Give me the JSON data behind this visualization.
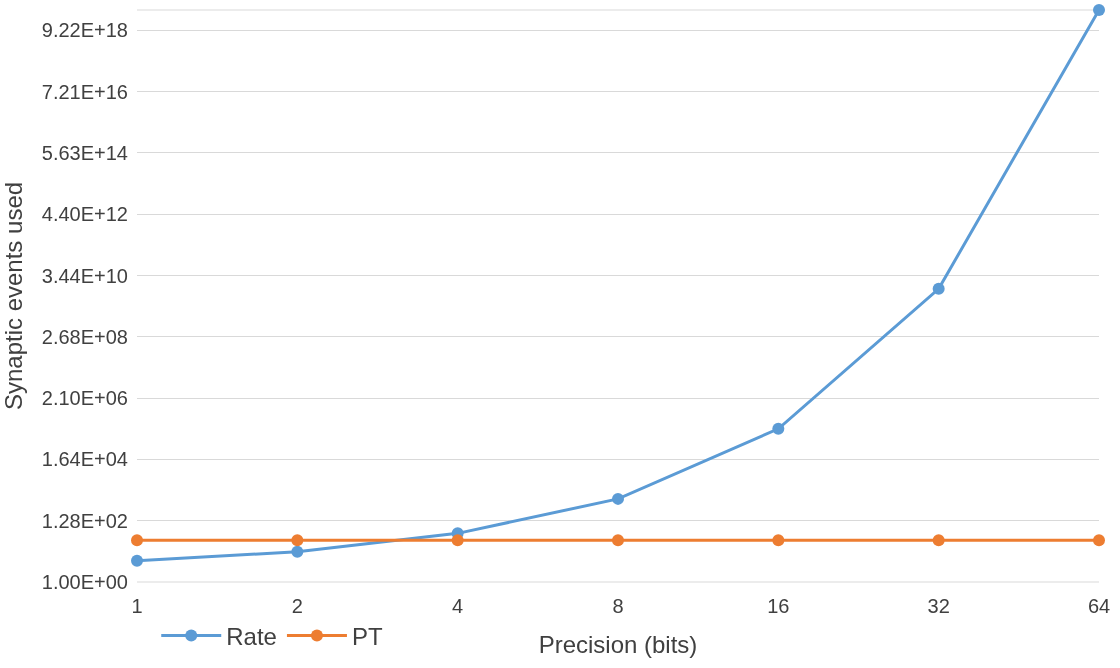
{
  "chart_data": {
    "type": "line",
    "xlabel": "Precision (bits)",
    "ylabel": "Synaptic events used",
    "categories": [
      "1",
      "2",
      "4",
      "8",
      "16",
      "32",
      "64"
    ],
    "series": [
      {
        "name": "Rate",
        "color": "#5b9bd5",
        "values": [
          5.4,
          11,
          47,
          720,
          185000,
          12000000000.0,
          4.6e+19
        ]
      },
      {
        "name": "PT",
        "color": "#ed7d31",
        "values": [
          27,
          27,
          27,
          27,
          27,
          27,
          27
        ]
      }
    ],
    "log": "y",
    "ylim": [
      1,
      4.6e+19
    ],
    "yticks": [
      {
        "value": 1,
        "label": "1.00E+00"
      },
      {
        "value": 128,
        "label": "1.28E+02"
      },
      {
        "value": 16384,
        "label": "1.64E+04"
      },
      {
        "value": 2097152,
        "label": "2.10E+06"
      },
      {
        "value": 268435456,
        "label": "2.68E+08"
      },
      {
        "value": 34359738368,
        "label": "3.44E+10"
      },
      {
        "value": 4398046511104,
        "label": "4.40E+12"
      },
      {
        "value": 562949953421312,
        "label": "5.63E+14"
      },
      {
        "value": 72057594037927936,
        "label": "7.21E+16"
      },
      {
        "value": 9223372036854775808,
        "label": "9.22E+18"
      }
    ],
    "grid": "y",
    "legend": "bottom left",
    "marker": "circle",
    "line_style": "solid"
  }
}
